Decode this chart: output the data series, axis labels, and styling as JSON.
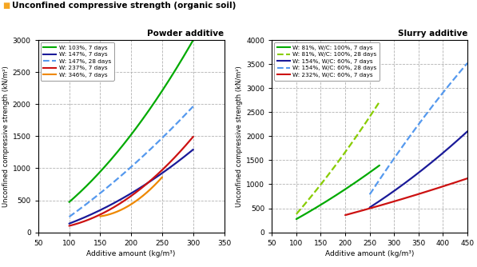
{
  "title": "Unconfined compressive strength (organic soil)",
  "title_color": "#000000",
  "title_square_color": "#F5A623",
  "left_title": "Powder additive",
  "right_title": "Slurry additive",
  "ylabel": "Unconfined compressive strength (kN/m²)",
  "xlabel": "Additive amount (kg/m³)",
  "left": {
    "xlim": [
      50,
      350
    ],
    "ylim": [
      0,
      3000
    ],
    "xticks": [
      50,
      100,
      150,
      200,
      250,
      300,
      350
    ],
    "yticks": [
      0,
      500,
      1000,
      1500,
      2000,
      2500,
      3000
    ],
    "series": [
      {
        "label": "W: 103%, 7 days",
        "color": "#00AA00",
        "linestyle": "solid",
        "x": [
          100,
          150,
          200,
          250,
          300
        ],
        "y": [
          480,
          920,
          1550,
          2200,
          3000
        ]
      },
      {
        "label": "W: 147%, 7 days",
        "color": "#1A1A99",
        "linestyle": "solid",
        "x": [
          100,
          150,
          200,
          250,
          300
        ],
        "y": [
          145,
          330,
          600,
          950,
          1280
        ]
      },
      {
        "label": "W: 147%, 28 days",
        "color": "#5599EE",
        "linestyle": "dashed",
        "x": [
          100,
          150,
          200,
          250,
          300
        ],
        "y": [
          250,
          600,
          1000,
          1510,
          1950
        ]
      },
      {
        "label": "W: 237%, 7 days",
        "color": "#CC1111",
        "linestyle": "solid",
        "x": [
          100,
          150,
          200,
          250,
          300
        ],
        "y": [
          100,
          280,
          560,
          980,
          1490
        ]
      },
      {
        "label": "W: 346%, 7 days",
        "color": "#EE8800",
        "linestyle": "solid",
        "x": [
          150,
          175,
          200,
          225,
          250
        ],
        "y": [
          240,
          330,
          440,
          600,
          870
        ]
      }
    ]
  },
  "right": {
    "xlim": [
      50,
      450
    ],
    "ylim": [
      0,
      4000
    ],
    "xticks": [
      50,
      100,
      150,
      200,
      250,
      300,
      350,
      400,
      450
    ],
    "yticks": [
      0,
      500,
      1000,
      1500,
      2000,
      2500,
      3000,
      3500,
      4000
    ],
    "series": [
      {
        "label": "W: 81%, W/C: 100%, 7 days",
        "color": "#00AA00",
        "linestyle": "solid",
        "x": [
          100,
          150,
          200,
          250,
          270
        ],
        "y": [
          280,
          560,
          900,
          1260,
          1380
        ]
      },
      {
        "label": "W: 81%, W/C: 100%, 28 days",
        "color": "#88CC00",
        "linestyle": "dashed",
        "x": [
          100,
          150,
          200,
          250,
          270
        ],
        "y": [
          420,
          900,
          1700,
          2520,
          2620
        ]
      },
      {
        "label": "W: 154%, W/C: 60%, 7 days",
        "color": "#1A1A99",
        "linestyle": "solid",
        "x": [
          250,
          300,
          350,
          400,
          450
        ],
        "y": [
          520,
          850,
          1250,
          1650,
          2100
        ]
      },
      {
        "label": "W: 154%, W/C: 60%, 28 days",
        "color": "#5599EE",
        "linestyle": "dashed",
        "x": [
          250,
          300,
          350,
          400,
          450
        ],
        "y": [
          800,
          1500,
          2280,
          2900,
          3520
        ]
      },
      {
        "label": "W: 232%, W/C: 60%, 7 days",
        "color": "#CC1111",
        "linestyle": "solid",
        "x": [
          200,
          250,
          300,
          350,
          400,
          450
        ],
        "y": [
          360,
          490,
          650,
          790,
          960,
          1120
        ]
      }
    ]
  }
}
